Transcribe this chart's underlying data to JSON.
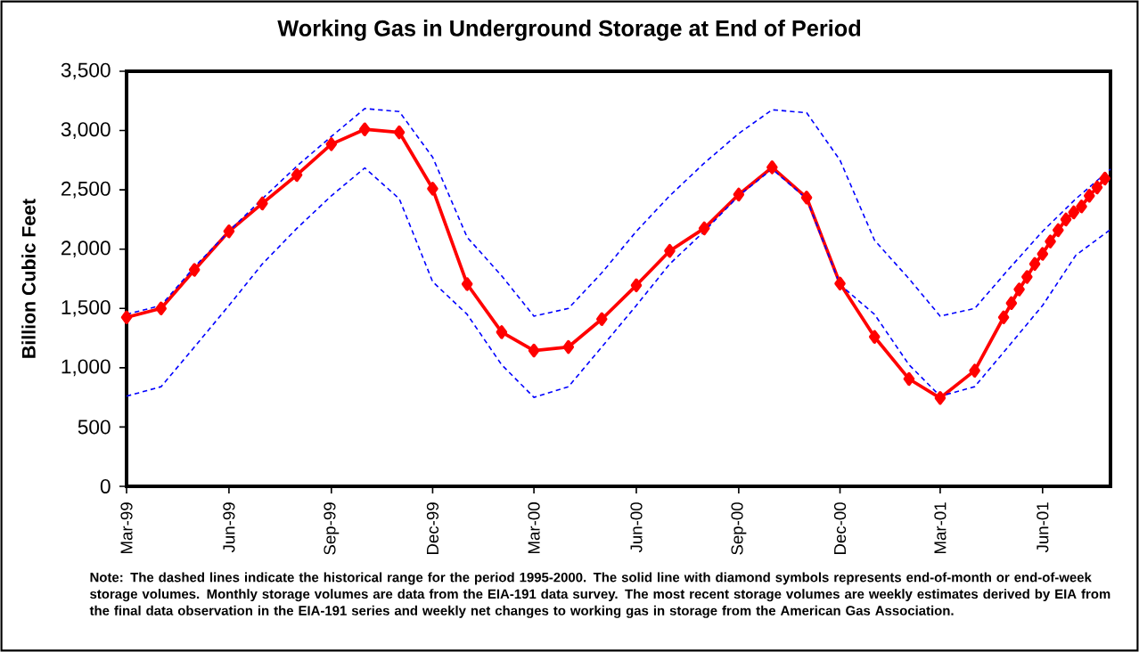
{
  "chart_data": {
    "type": "line",
    "title": "Working Gas in Underground Storage at End of Period",
    "ylabel": "Billion Cubic Feet",
    "xlim": [
      "1999-03-01",
      "2001-08-01"
    ],
    "xticks": [
      {
        "value": "1999-03",
        "label": "Mar-99"
      },
      {
        "value": "1999-06",
        "label": "Jun-99"
      },
      {
        "value": "1999-09",
        "label": "Sep-99"
      },
      {
        "value": "1999-12",
        "label": "Dec-99"
      },
      {
        "value": "2000-03",
        "label": "Mar-00"
      },
      {
        "value": "2000-06",
        "label": "Jun-00"
      },
      {
        "value": "2000-09",
        "label": "Sep-00"
      },
      {
        "value": "2000-12",
        "label": "Dec-00"
      },
      {
        "value": "2001-03",
        "label": "Mar-01"
      },
      {
        "value": "2001-06",
        "label": "Jun-01"
      }
    ],
    "ylim": [
      0,
      3500
    ],
    "yticks": [
      0,
      500,
      {
        "value": 1000,
        "label": "1,000"
      },
      {
        "value": 1500,
        "label": "1,500"
      },
      {
        "value": 2000,
        "label": "2,000"
      },
      {
        "value": 2500,
        "label": "2,500"
      },
      {
        "value": 3000,
        "label": "3,000"
      },
      {
        "value": 3500,
        "label": "3,500"
      }
    ],
    "grid": false,
    "series": [
      {
        "color": "#0000ff",
        "line_style": "dashed",
        "marker": "none",
        "x": [
          "1999-03",
          "1999-04",
          "1999-05",
          "1999-06",
          "1999-07",
          "1999-08",
          "1999-09",
          "1999-10",
          "1999-11",
          "1999-12",
          "2000-01",
          "2000-02",
          "2000-03",
          "2000-04",
          "2000-05",
          "2000-06",
          "2000-07",
          "2000-08",
          "2000-09",
          "2000-10",
          "2000-11",
          "2000-12",
          "2001-01",
          "2001-02",
          "2001-03",
          "2001-04",
          "2001-05",
          "2001-06",
          "2001-07",
          "2001-08"
        ],
        "values": [
          1450,
          1525,
          1850,
          2150,
          2425,
          2700,
          2950,
          3185,
          3160,
          2775,
          2100,
          1775,
          1435,
          1500,
          1800,
          2150,
          2450,
          2725,
          2975,
          3175,
          3150,
          2750,
          2075,
          1750,
          1435,
          1500,
          1825,
          2150,
          2425,
          2675
        ]
      },
      {
        "color": "#0000ff",
        "line_style": "dashed",
        "marker": "none",
        "x": [
          "1999-03",
          "1999-04",
          "1999-05",
          "1999-06",
          "1999-07",
          "1999-08",
          "1999-09",
          "1999-10",
          "1999-11",
          "1999-12",
          "2000-01",
          "2000-02",
          "2000-03",
          "2000-04",
          "2000-05",
          "2000-06",
          "2000-07",
          "2000-08",
          "2000-09",
          "2000-10",
          "2000-11",
          "2000-12",
          "2001-01",
          "2001-02",
          "2001-03",
          "2001-04",
          "2001-05",
          "2001-06",
          "2001-07",
          "2001-08"
        ],
        "values": [
          760,
          840,
          1175,
          1525,
          1875,
          2175,
          2450,
          2685,
          2425,
          1725,
          1450,
          1025,
          750,
          840,
          1175,
          1525,
          1875,
          2150,
          2450,
          2675,
          2425,
          1700,
          1450,
          1025,
          760,
          840,
          1175,
          1525,
          1950,
          2165
        ]
      },
      {
        "color": "#ff0000",
        "line_style": "solid",
        "marker": "diamond",
        "x": [
          "1999-03",
          "1999-04",
          "1999-05",
          "1999-06",
          "1999-07",
          "1999-08",
          "1999-09",
          "1999-10",
          "1999-11",
          "1999-12",
          "2000-01",
          "2000-02",
          "2000-03",
          "2000-04",
          "2000-05",
          "2000-06",
          "2000-07",
          "2000-08",
          "2000-09",
          "2000-10",
          "2000-11",
          "2000-12",
          "2001-01",
          "2001-02",
          "2001-03",
          "2001-04",
          "2001-04-27",
          "2001-05-04",
          "2001-05-11",
          "2001-05-18",
          "2001-05-25",
          "2001-06-01",
          "2001-06-08",
          "2001-06-15",
          "2001-06-22",
          "2001-06-29",
          "2001-07-06",
          "2001-07-13",
          "2001-07-20",
          "2001-07-27"
        ],
        "values": [
          1425,
          1500,
          1825,
          2150,
          2385,
          2625,
          2885,
          3010,
          2985,
          2510,
          1705,
          1300,
          1145,
          1175,
          1410,
          1695,
          1985,
          2175,
          2460,
          2690,
          2435,
          1710,
          1260,
          905,
          745,
          975,
          1425,
          1545,
          1660,
          1765,
          1875,
          1960,
          2065,
          2160,
          2250,
          2310,
          2360,
          2450,
          2520,
          2595
        ]
      }
    ],
    "annotations": [
      "Note: The dashed lines indicate the historical range for the period 1995-2000.  The solid line with diamond symbols represents end-of-month or end-of-week storage volumes.  Monthly storage volumes are data from the EIA-191 data survey.  The most recent storage volumes are weekly estimates derived by EIA from the final data observation in the EIA-191 series and weekly net changes to working gas in storage from the American Gas Association."
    ]
  }
}
